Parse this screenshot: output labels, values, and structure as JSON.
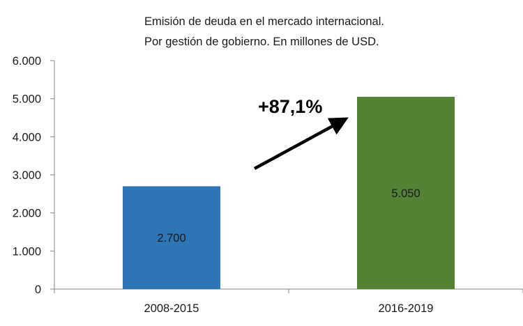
{
  "chart_data": {
    "type": "bar",
    "title_lines": [
      "Emisión de deuda en el mercado internacional.",
      "Por gestión de gobierno. En millones de USD."
    ],
    "categories": [
      "2008-2015",
      "2016-2019"
    ],
    "values": [
      2700,
      5050
    ],
    "data_labels": [
      "2.700",
      "5.050"
    ],
    "ylim": [
      0,
      6000
    ],
    "y_ticks": [
      0,
      1000,
      2000,
      3000,
      4000,
      5000,
      6000
    ],
    "y_tick_labels": [
      "0",
      "1.000",
      "2.000",
      "3.000",
      "4.000",
      "5.000",
      "6.000"
    ],
    "bar_colors": [
      "#2e75b6",
      "#548235"
    ],
    "annotation": "+87,1%",
    "grid": false,
    "legend": "none"
  }
}
